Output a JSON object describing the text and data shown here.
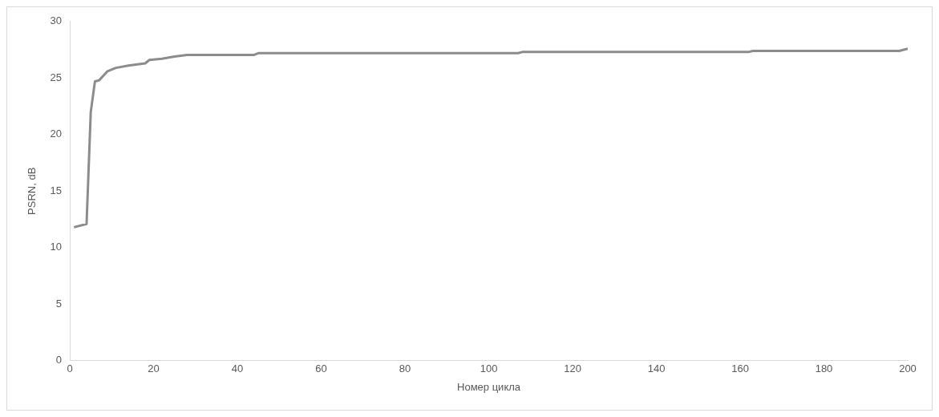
{
  "chart_data": {
    "type": "line",
    "xlabel": "Номер цикла",
    "ylabel": "PSRN, dB",
    "x": [
      1,
      4,
      5,
      6,
      7,
      9,
      11,
      14,
      18,
      19,
      22,
      25,
      28,
      44,
      45,
      107,
      108,
      162,
      163,
      198,
      200
    ],
    "series": [
      {
        "color": "#8c8c8c",
        "values": [
          11.8,
          12.1,
          22,
          24.7,
          24.8,
          25.6,
          25.9,
          26.1,
          26.3,
          26.6,
          26.7,
          26.9,
          27.05,
          27.05,
          27.2,
          27.2,
          27.3,
          27.3,
          27.4,
          27.4,
          27.6
        ]
      }
    ],
    "xlim": [
      0,
      200
    ],
    "xticks": [
      0,
      20,
      40,
      60,
      80,
      100,
      120,
      140,
      160,
      180,
      200
    ],
    "ylim": [
      0,
      30
    ],
    "yticks": [
      0,
      5,
      10,
      15,
      20,
      25,
      30
    ],
    "grid": false,
    "legend": false,
    "marker": "none",
    "line_style": "solid"
  }
}
